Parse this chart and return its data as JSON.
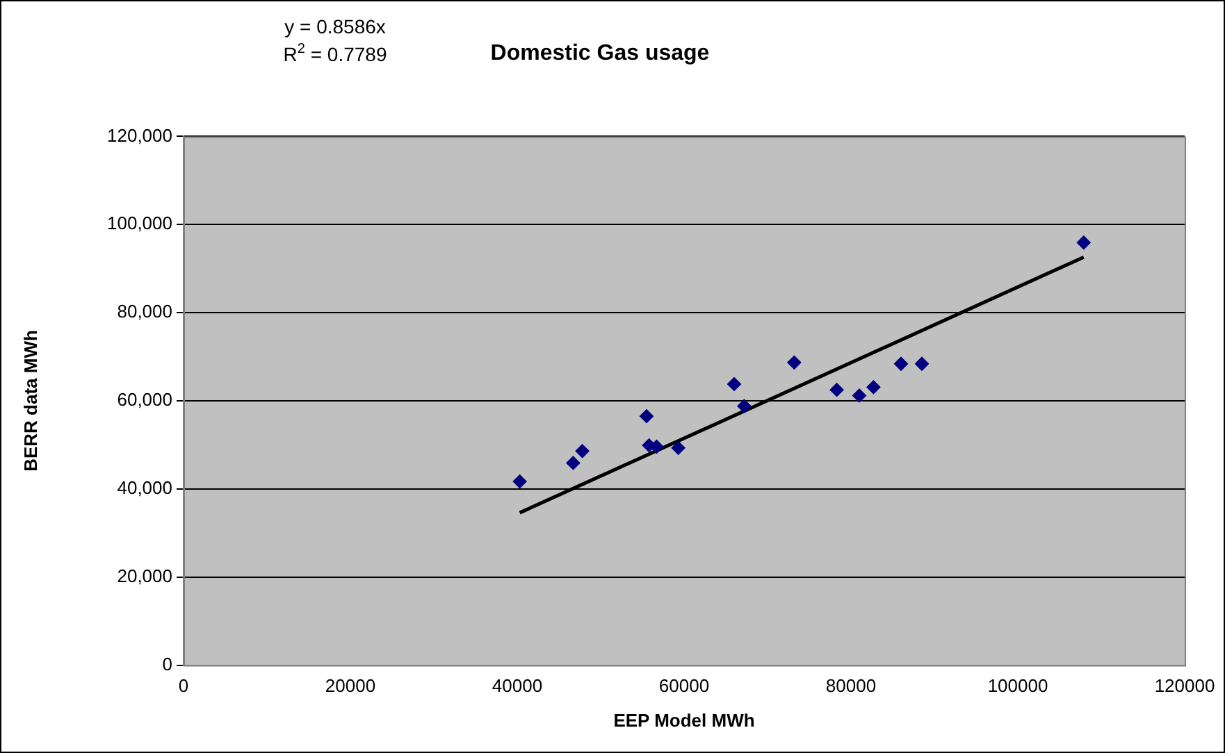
{
  "chart_data": {
    "type": "scatter",
    "title": "Domestic Gas usage",
    "xlabel": "EEP Model MWh",
    "ylabel": "BERR data MWh",
    "annotations": [
      "y = 0.8586x",
      "R$^{2}$ = 0.7789"
    ],
    "xlim": [
      0,
      120000
    ],
    "xticks": [
      0,
      20000,
      40000,
      60000,
      80000,
      100000,
      120000
    ],
    "ylim": [
      0,
      120000
    ],
    "yticks": [
      {
        "value": 0,
        "label": "0"
      },
      {
        "value": 20000,
        "label": "20,000"
      },
      {
        "value": 40000,
        "label": "40,000"
      },
      {
        "value": 60000,
        "label": "60,000"
      },
      {
        "value": 80000,
        "label": "80,000"
      },
      {
        "value": 100000,
        "label": "100,000"
      },
      {
        "value": 120000,
        "label": "120,000"
      }
    ],
    "grid": "y",
    "legend": false,
    "marker": "diamond",
    "series": [
      {
        "color": "#000080",
        "x": [
          40300,
          46700,
          47800,
          55500,
          55800,
          56700,
          59300,
          66000,
          67200,
          73200,
          78300,
          81000,
          82700,
          86000,
          88500,
          107900
        ],
        "values": [
          41700,
          45900,
          48600,
          56500,
          49900,
          49600,
          49300,
          63800,
          58800,
          68700,
          62500,
          61200,
          63100,
          68400,
          68400,
          95900
        ]
      },
      {
        "type": "line",
        "marker": "none",
        "line_style": "solid",
        "color": "#000000",
        "x": [
          40300,
          107900
        ],
        "values": [
          34600,
          92600
        ]
      }
    ]
  }
}
